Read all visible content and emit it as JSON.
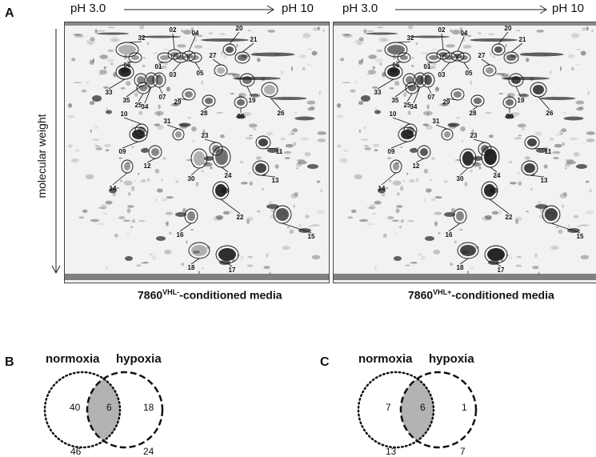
{
  "panels": {
    "a": "A",
    "b": "B",
    "c": "C"
  },
  "ph": {
    "low": "pH 3.0",
    "high": "pH 10"
  },
  "axis": {
    "ylabel": "molecular weight"
  },
  "gels": [
    {
      "base": "7860",
      "sup": "VHL-",
      "suffix": "-conditioned media"
    },
    {
      "base": "7860",
      "sup": "VHL+",
      "suffix": "-conditioned media"
    }
  ],
  "spot_labels": [
    "02",
    "04",
    "20",
    "21",
    "32",
    "06",
    "01",
    "03",
    "05",
    "27",
    "19",
    "26",
    "33",
    "35",
    "34",
    "07",
    "25",
    "29",
    "28",
    "08",
    "10",
    "31",
    "23",
    "09",
    "12",
    "30",
    "24",
    "11",
    "13",
    "14",
    "22",
    "15",
    "16",
    "18",
    "17"
  ],
  "venn_b": {
    "left_label": "normoxia",
    "right_label": "hypoxia",
    "left_only": "40",
    "overlap": "6",
    "right_only": "18",
    "left_total": "46",
    "right_total": "24"
  },
  "venn_c": {
    "left_label": "normoxia",
    "right_label": "hypoxia",
    "left_only": "7",
    "overlap": "6",
    "right_only": "1",
    "left_total": "13",
    "right_total": "7"
  },
  "colors": {
    "overlap": "#b3b3b3",
    "spot": "#1a1a1a",
    "gel_bg": "#f2f2f2"
  }
}
